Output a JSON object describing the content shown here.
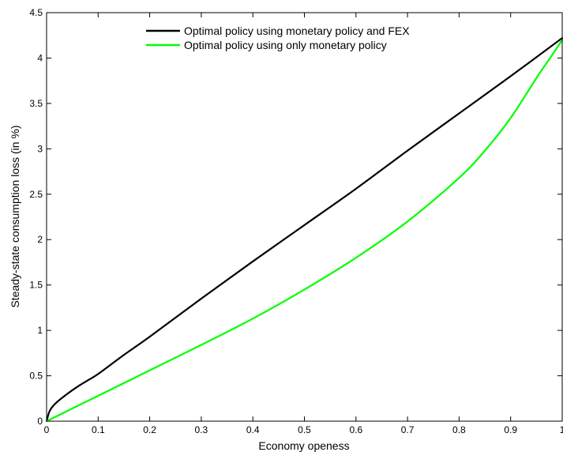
{
  "chart_data": {
    "type": "line",
    "title": "",
    "xlabel": "Economy openess",
    "ylabel": "Steady-state consumption loss (in %)",
    "xlim": [
      0,
      1
    ],
    "ylim": [
      0,
      4.5
    ],
    "xticks": [
      "0",
      "0.1",
      "0.2",
      "0.3",
      "0.4",
      "0.5",
      "0.6",
      "0.7",
      "0.8",
      "0.9",
      "1"
    ],
    "yticks": [
      "0",
      "0.5",
      "1",
      "1.5",
      "2",
      "2.5",
      "3",
      "3.5",
      "4",
      "4.5"
    ],
    "legend_position": "top-center",
    "grid": false,
    "series": [
      {
        "name": "Optimal policy using monetary policy and FEX",
        "color": "#000000",
        "x": [
          0,
          0.005,
          0.01,
          0.02,
          0.04,
          0.06,
          0.08,
          0.1,
          0.15,
          0.2,
          0.3,
          0.4,
          0.5,
          0.6,
          0.7,
          0.8,
          0.9,
          1.0
        ],
        "y": [
          0,
          0.1,
          0.15,
          0.21,
          0.3,
          0.38,
          0.45,
          0.52,
          0.73,
          0.93,
          1.35,
          1.76,
          2.16,
          2.56,
          2.98,
          3.39,
          3.8,
          4.22
        ]
      },
      {
        "name": "Optimal policy using only monetary policy",
        "color": "#00ff00",
        "x": [
          0,
          0.05,
          0.1,
          0.2,
          0.3,
          0.4,
          0.5,
          0.6,
          0.7,
          0.8,
          0.85,
          0.9,
          0.95,
          0.98,
          1.0
        ],
        "y": [
          0,
          0.14,
          0.28,
          0.56,
          0.84,
          1.13,
          1.45,
          1.8,
          2.2,
          2.68,
          2.98,
          3.34,
          3.78,
          4.03,
          4.2
        ]
      }
    ]
  }
}
